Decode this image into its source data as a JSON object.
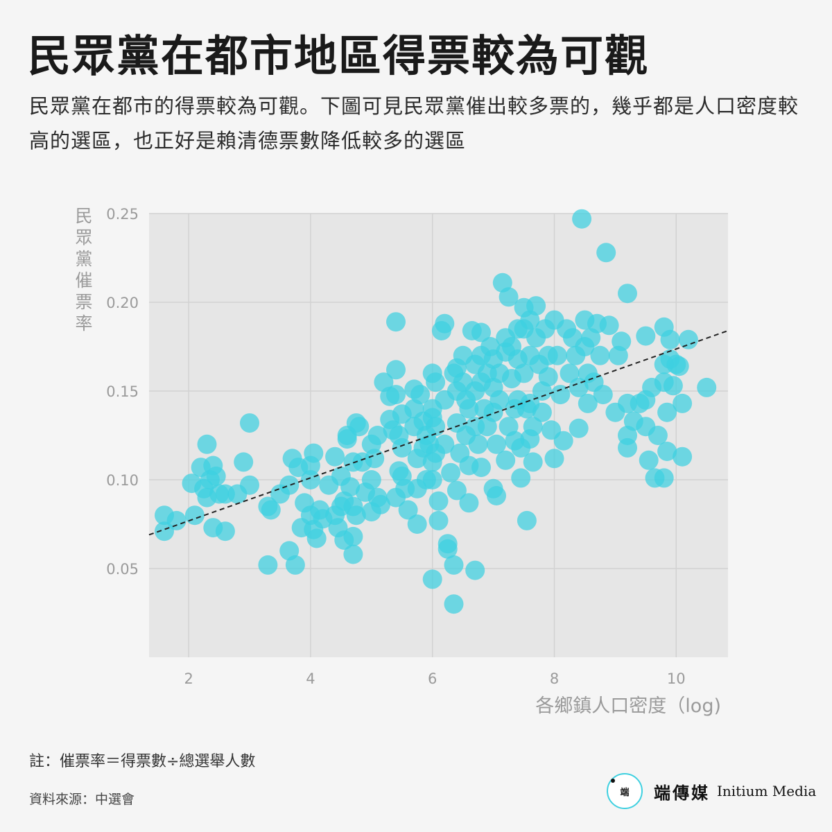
{
  "title": "民眾黨在都市地區得票較為可觀",
  "subtitle": "民眾黨在都市的得票較為可觀。下圖可見民眾黨催出較多票的，幾乎都是人口密度較高的選區，也正好是賴清德票數降低較多的選區",
  "note": "註：催票率＝得票數÷總選舉人數",
  "source": "資料來源：中選會",
  "logo": {
    "mark": "端",
    "name_cn": "端傳媒",
    "name_en": "Initium Media"
  },
  "colors": {
    "point": "#3dd0e0",
    "plot_bg": "#e6e6e6",
    "grid": "#d2d2d2",
    "trend": "#222222",
    "page_bg": "#f5f5f5"
  },
  "chart_data": {
    "type": "scatter",
    "xlabel": "各鄉鎮人口密度（log)",
    "ylabel": "民眾黨催票率",
    "xlim": [
      1.35,
      10.85
    ],
    "ylim": [
      0.0,
      0.25
    ],
    "xticks": [
      2,
      4,
      6,
      8,
      10
    ],
    "xtick_labels": [
      "2",
      "4",
      "6",
      "8",
      "10"
    ],
    "yticks": [
      0.05,
      0.1,
      0.15,
      0.2,
      0.25
    ],
    "ytick_labels": [
      "0.05",
      "0.10",
      "0.15",
      "0.20",
      "0.25"
    ],
    "grid": true,
    "trendline": {
      "style": "dashed",
      "x": [
        1.35,
        10.85
      ],
      "y": [
        0.069,
        0.184
      ]
    },
    "points": [
      [
        1.6,
        0.08
      ],
      [
        1.6,
        0.071
      ],
      [
        1.8,
        0.077
      ],
      [
        2.05,
        0.098
      ],
      [
        2.1,
        0.08
      ],
      [
        2.2,
        0.107
      ],
      [
        2.25,
        0.095
      ],
      [
        2.3,
        0.09
      ],
      [
        2.3,
        0.12
      ],
      [
        2.35,
        0.1
      ],
      [
        2.4,
        0.108
      ],
      [
        2.4,
        0.073
      ],
      [
        2.45,
        0.102
      ],
      [
        2.5,
        0.092
      ],
      [
        2.6,
        0.071
      ],
      [
        2.6,
        0.092
      ],
      [
        2.8,
        0.092
      ],
      [
        2.9,
        0.11
      ],
      [
        3.0,
        0.132
      ],
      [
        3.0,
        0.097
      ],
      [
        3.3,
        0.085
      ],
      [
        3.35,
        0.083
      ],
      [
        3.3,
        0.052
      ],
      [
        3.5,
        0.092
      ],
      [
        3.7,
        0.112
      ],
      [
        3.65,
        0.06
      ],
      [
        3.65,
        0.097
      ],
      [
        3.75,
        0.052
      ],
      [
        3.8,
        0.107
      ],
      [
        3.9,
        0.087
      ],
      [
        3.85,
        0.073
      ],
      [
        4.0,
        0.108
      ],
      [
        4.0,
        0.1
      ],
      [
        4.0,
        0.08
      ],
      [
        4.05,
        0.115
      ],
      [
        4.05,
        0.072
      ],
      [
        4.1,
        0.067
      ],
      [
        4.15,
        0.083
      ],
      [
        4.2,
        0.078
      ],
      [
        4.3,
        0.097
      ],
      [
        4.4,
        0.113
      ],
      [
        4.4,
        0.08
      ],
      [
        4.45,
        0.073
      ],
      [
        4.5,
        0.085
      ],
      [
        4.5,
        0.102
      ],
      [
        4.55,
        0.088
      ],
      [
        4.55,
        0.066
      ],
      [
        4.6,
        0.125
      ],
      [
        4.6,
        0.123
      ],
      [
        4.65,
        0.096
      ],
      [
        4.7,
        0.11
      ],
      [
        4.7,
        0.085
      ],
      [
        4.75,
        0.132
      ],
      [
        4.7,
        0.068
      ],
      [
        4.75,
        0.08
      ],
      [
        4.7,
        0.058
      ],
      [
        4.8,
        0.13
      ],
      [
        4.85,
        0.11
      ],
      [
        4.9,
        0.093
      ],
      [
        5.0,
        0.12
      ],
      [
        5.0,
        0.1
      ],
      [
        5.05,
        0.112
      ],
      [
        5.0,
        0.082
      ],
      [
        5.1,
        0.125
      ],
      [
        5.1,
        0.09
      ],
      [
        5.15,
        0.086
      ],
      [
        5.2,
        0.155
      ],
      [
        5.3,
        0.147
      ],
      [
        5.3,
        0.134
      ],
      [
        5.35,
        0.128
      ],
      [
        5.4,
        0.189
      ],
      [
        5.4,
        0.162
      ],
      [
        5.4,
        0.148
      ],
      [
        5.45,
        0.125
      ],
      [
        5.45,
        0.105
      ],
      [
        5.4,
        0.09
      ],
      [
        5.5,
        0.137
      ],
      [
        5.5,
        0.118
      ],
      [
        5.5,
        0.102
      ],
      [
        5.55,
        0.095
      ],
      [
        5.6,
        0.083
      ],
      [
        5.7,
        0.14
      ],
      [
        5.7,
        0.13
      ],
      [
        5.7,
        0.151
      ],
      [
        5.75,
        0.112
      ],
      [
        5.75,
        0.095
      ],
      [
        5.75,
        0.075
      ],
      [
        5.8,
        0.148
      ],
      [
        5.85,
        0.133
      ],
      [
        5.85,
        0.118
      ],
      [
        5.9,
        0.1
      ],
      [
        5.9,
        0.125
      ],
      [
        5.95,
        0.12
      ],
      [
        6.0,
        0.16
      ],
      [
        6.0,
        0.14
      ],
      [
        6.0,
        0.135
      ],
      [
        6.0,
        0.11
      ],
      [
        6.0,
        0.1
      ],
      [
        6.0,
        0.044
      ],
      [
        6.05,
        0.155
      ],
      [
        6.05,
        0.13
      ],
      [
        6.05,
        0.115
      ],
      [
        6.1,
        0.088
      ],
      [
        6.1,
        0.077
      ],
      [
        6.15,
        0.184
      ],
      [
        6.2,
        0.188
      ],
      [
        6.2,
        0.145
      ],
      [
        6.2,
        0.12
      ],
      [
        6.25,
        0.064
      ],
      [
        6.25,
        0.061
      ],
      [
        6.3,
        0.104
      ],
      [
        6.35,
        0.052
      ],
      [
        6.35,
        0.03
      ],
      [
        6.35,
        0.16
      ],
      [
        6.4,
        0.163
      ],
      [
        6.4,
        0.15
      ],
      [
        6.4,
        0.132
      ],
      [
        6.45,
        0.115
      ],
      [
        6.4,
        0.094
      ],
      [
        6.5,
        0.17
      ],
      [
        6.5,
        0.155
      ],
      [
        6.55,
        0.145
      ],
      [
        6.55,
        0.125
      ],
      [
        6.6,
        0.108
      ],
      [
        6.6,
        0.14
      ],
      [
        6.6,
        0.087
      ],
      [
        6.65,
        0.184
      ],
      [
        6.7,
        0.165
      ],
      [
        6.7,
        0.15
      ],
      [
        6.7,
        0.13
      ],
      [
        6.7,
        0.049
      ],
      [
        6.75,
        0.12
      ],
      [
        6.8,
        0.183
      ],
      [
        6.8,
        0.17
      ],
      [
        6.8,
        0.155
      ],
      [
        6.85,
        0.14
      ],
      [
        6.8,
        0.107
      ],
      [
        6.9,
        0.16
      ],
      [
        6.9,
        0.13
      ],
      [
        6.95,
        0.175
      ],
      [
        7.0,
        0.168
      ],
      [
        7.0,
        0.152
      ],
      [
        7.0,
        0.138
      ],
      [
        7.05,
        0.12
      ],
      [
        7.0,
        0.095
      ],
      [
        7.05,
        0.091
      ],
      [
        7.1,
        0.16
      ],
      [
        7.1,
        0.145
      ],
      [
        7.15,
        0.211
      ],
      [
        7.2,
        0.18
      ],
      [
        7.2,
        0.172
      ],
      [
        7.2,
        0.111
      ],
      [
        7.25,
        0.203
      ],
      [
        7.25,
        0.13
      ],
      [
        7.3,
        0.175
      ],
      [
        7.3,
        0.157
      ],
      [
        7.35,
        0.14
      ],
      [
        7.35,
        0.122
      ],
      [
        7.4,
        0.185
      ],
      [
        7.4,
        0.168
      ],
      [
        7.4,
        0.145
      ],
      [
        7.45,
        0.118
      ],
      [
        7.45,
        0.101
      ],
      [
        7.5,
        0.197
      ],
      [
        7.5,
        0.185
      ],
      [
        7.5,
        0.16
      ],
      [
        7.55,
        0.14
      ],
      [
        7.55,
        0.077
      ],
      [
        7.6,
        0.19
      ],
      [
        7.6,
        0.17
      ],
      [
        7.6,
        0.143
      ],
      [
        7.6,
        0.123
      ],
      [
        7.65,
        0.13
      ],
      [
        7.65,
        0.11
      ],
      [
        7.7,
        0.198
      ],
      [
        7.7,
        0.18
      ],
      [
        7.75,
        0.165
      ],
      [
        7.8,
        0.15
      ],
      [
        7.8,
        0.138
      ],
      [
        7.85,
        0.185
      ],
      [
        7.9,
        0.17
      ],
      [
        7.9,
        0.158
      ],
      [
        7.95,
        0.128
      ],
      [
        8.0,
        0.112
      ],
      [
        8.0,
        0.19
      ],
      [
        8.05,
        0.17
      ],
      [
        8.1,
        0.148
      ],
      [
        8.15,
        0.122
      ],
      [
        8.2,
        0.185
      ],
      [
        8.25,
        0.16
      ],
      [
        8.3,
        0.18
      ],
      [
        8.35,
        0.17
      ],
      [
        8.4,
        0.152
      ],
      [
        8.4,
        0.129
      ],
      [
        8.45,
        0.247
      ],
      [
        8.5,
        0.19
      ],
      [
        8.5,
        0.175
      ],
      [
        8.55,
        0.16
      ],
      [
        8.55,
        0.143
      ],
      [
        8.6,
        0.18
      ],
      [
        8.65,
        0.155
      ],
      [
        8.7,
        0.188
      ],
      [
        8.75,
        0.17
      ],
      [
        8.8,
        0.148
      ],
      [
        8.85,
        0.228
      ],
      [
        8.9,
        0.187
      ],
      [
        9.0,
        0.138
      ],
      [
        9.05,
        0.17
      ],
      [
        9.1,
        0.178
      ],
      [
        9.2,
        0.205
      ],
      [
        9.2,
        0.143
      ],
      [
        9.2,
        0.125
      ],
      [
        9.2,
        0.118
      ],
      [
        9.3,
        0.133
      ],
      [
        9.4,
        0.143
      ],
      [
        9.5,
        0.181
      ],
      [
        9.5,
        0.145
      ],
      [
        9.5,
        0.13
      ],
      [
        9.55,
        0.111
      ],
      [
        9.6,
        0.152
      ],
      [
        9.65,
        0.101
      ],
      [
        9.7,
        0.125
      ],
      [
        9.8,
        0.186
      ],
      [
        9.8,
        0.165
      ],
      [
        9.8,
        0.155
      ],
      [
        9.8,
        0.101
      ],
      [
        9.85,
        0.138
      ],
      [
        9.85,
        0.116
      ],
      [
        9.9,
        0.179
      ],
      [
        9.9,
        0.168
      ],
      [
        9.95,
        0.153
      ],
      [
        10.0,
        0.165
      ],
      [
        10.05,
        0.164
      ],
      [
        10.1,
        0.143
      ],
      [
        10.1,
        0.113
      ],
      [
        10.2,
        0.179
      ],
      [
        10.5,
        0.152
      ]
    ]
  }
}
